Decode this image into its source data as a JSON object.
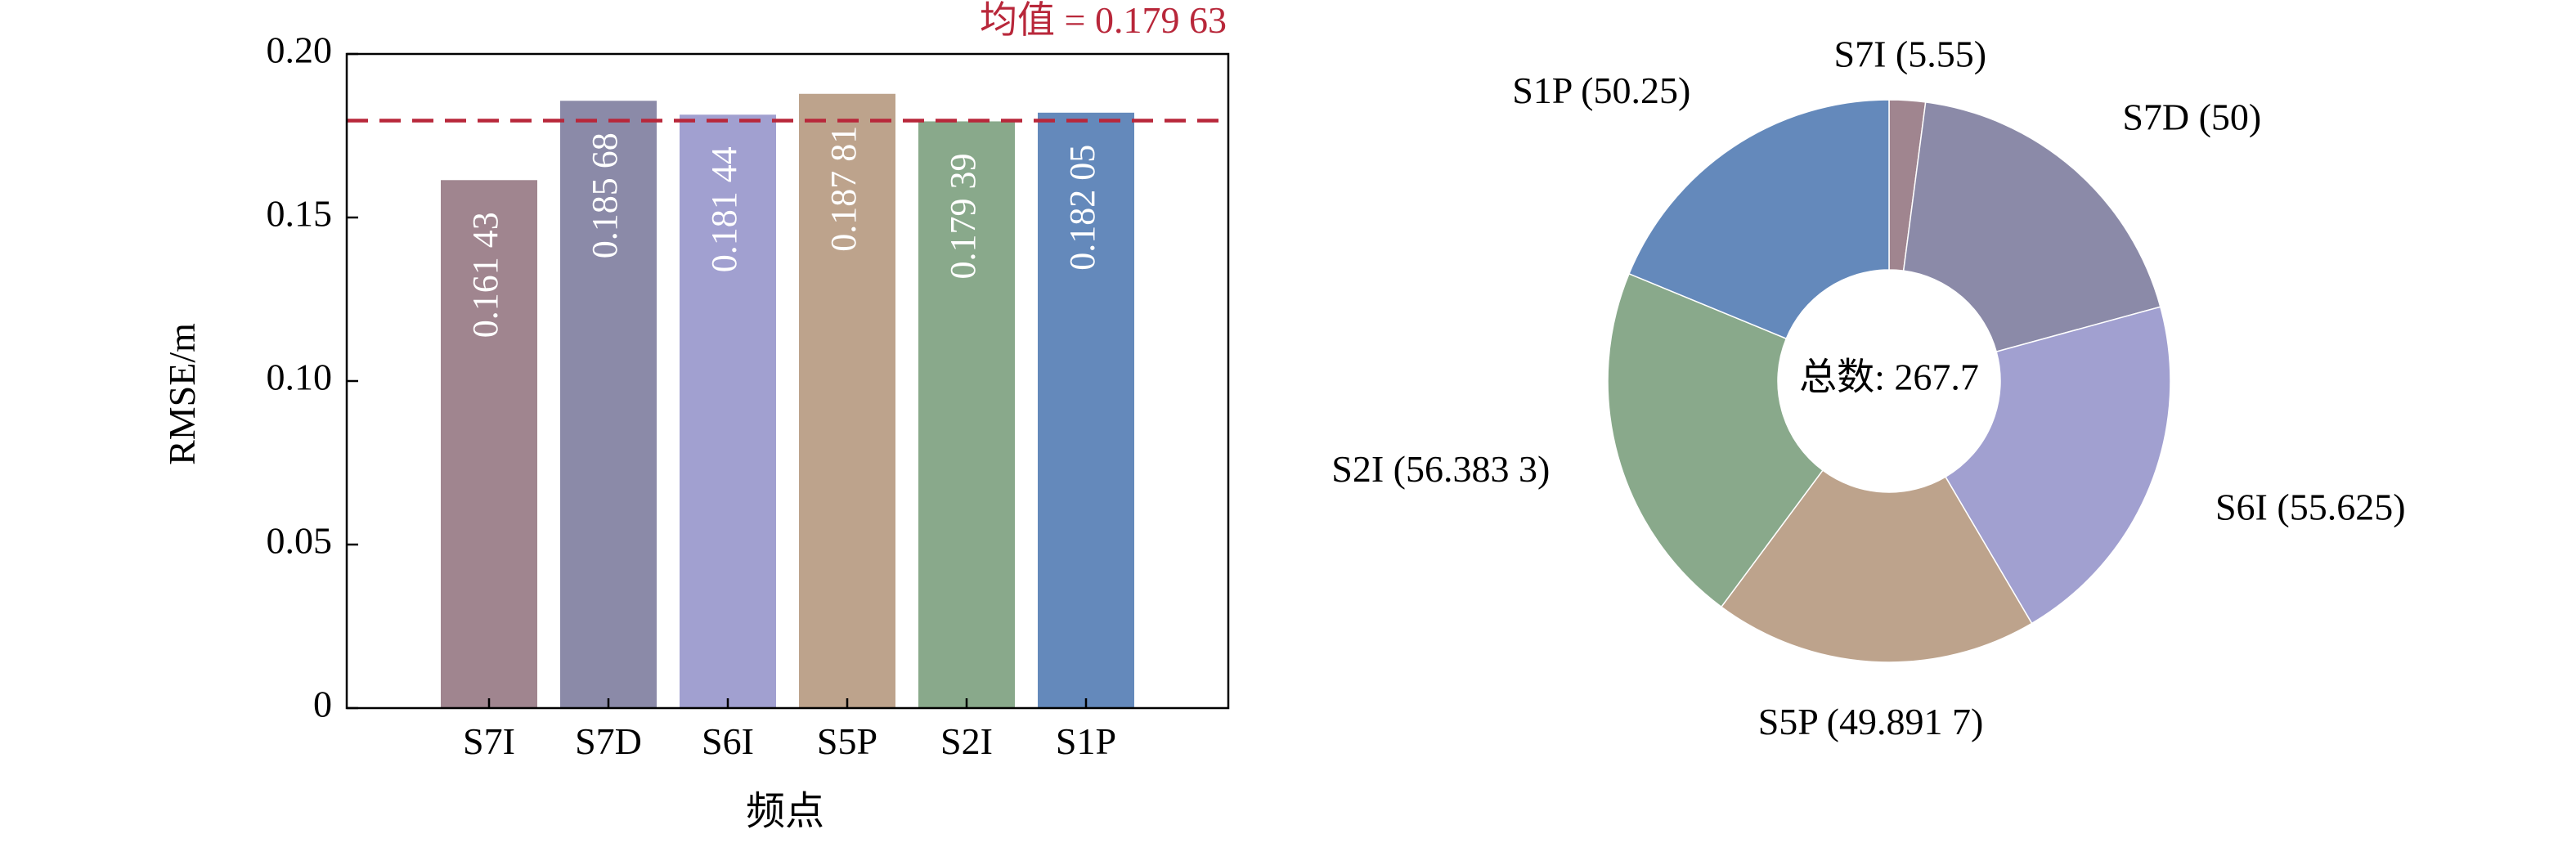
{
  "chart_data": [
    {
      "type": "bar",
      "xlabel": "频点",
      "ylabel": "RMSE/m",
      "ylim": [
        0,
        0.2
      ],
      "yticks": [
        "0",
        "0.05",
        "0.10",
        "0.15",
        "0.20"
      ],
      "ytick_values": [
        0,
        0.05,
        0.1,
        0.15,
        0.2
      ],
      "categories": [
        "S7I",
        "S7D",
        "S6I",
        "S5P",
        "S2I",
        "S1P"
      ],
      "values": [
        0.16143,
        0.18568,
        0.18144,
        0.18781,
        0.17939,
        0.18205
      ],
      "value_labels": [
        "0.161 43",
        "0.185 68",
        "0.181 44",
        "0.187 81",
        "0.179 39",
        "0.182 05"
      ],
      "colors": [
        "#a0858f",
        "#8b8aa8",
        "#a1a0d0",
        "#bda38c",
        "#89a98b",
        "#6489bb"
      ],
      "mean_line": {
        "value": 0.17963,
        "label": "均值 = 0.179 63",
        "color": "#b8273a",
        "style": "dashed"
      },
      "grid": false
    },
    {
      "type": "pie",
      "style": "donut",
      "center_label": "总数: 267.7",
      "slices": [
        {
          "name": "S7I",
          "value": 5.55,
          "label": "S7I (5.55)",
          "color": "#a0858f"
        },
        {
          "name": "S7D",
          "value": 50,
          "label": "S7D (50)",
          "color": "#8b8aa8"
        },
        {
          "name": "S6I",
          "value": 55.625,
          "label": "S6I (55.625)",
          "color": "#a1a0d0"
        },
        {
          "name": "S5P",
          "value": 49.8917,
          "label": "S5P (49.891 7)",
          "color": "#bda38c"
        },
        {
          "name": "S2I",
          "value": 56.3833,
          "label": "S2I (56.383 3)",
          "color": "#89a98b"
        },
        {
          "name": "S1P",
          "value": 50.25,
          "label": "S1P (50.25)",
          "color": "#6489bb"
        }
      ]
    }
  ]
}
